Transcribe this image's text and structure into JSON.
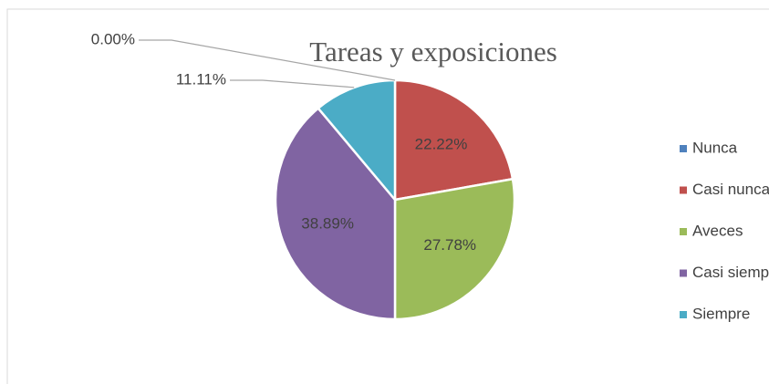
{
  "chart_data": {
    "type": "pie",
    "title": "Tareas y exposiciones",
    "categories": [
      "Nunca",
      "Casi nunca",
      "Aveces",
      "Casi siempre",
      "Siempre"
    ],
    "values": [
      0,
      22.22,
      27.78,
      38.89,
      11.11
    ],
    "value_labels": [
      "0.00%",
      "22.22%",
      "27.78%",
      "38.89%",
      "11.11%"
    ],
    "colors": [
      "#4f81bd",
      "#c0504d",
      "#9bbb59",
      "#8064a2",
      "#4bacc6"
    ],
    "legend": "right"
  }
}
